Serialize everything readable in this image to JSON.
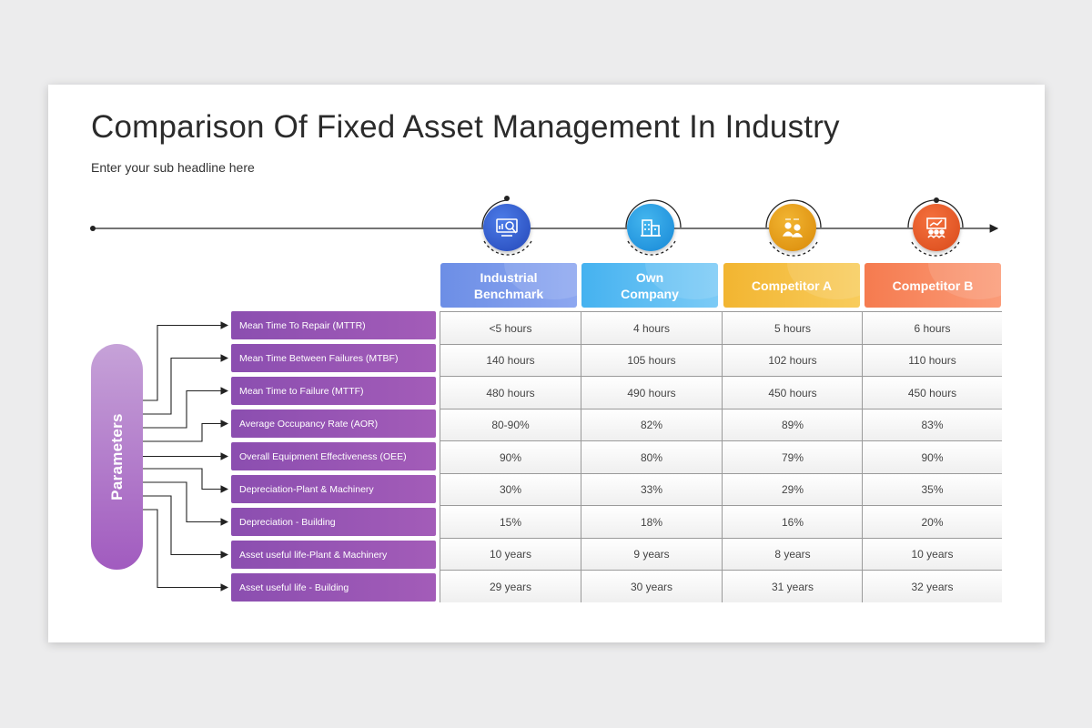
{
  "title": "Comparison Of Fixed Asset Management In Industry",
  "subtitle": "Enter your sub headline here",
  "parameters_label": "Parameters",
  "columns": [
    {
      "label": "Industrial Benchmark",
      "color": "#6c8ee6",
      "icon": "analytics-search-icon"
    },
    {
      "label": "Own Company",
      "color": "#45b2f0",
      "icon": "buildings-icon"
    },
    {
      "label": "Competitor A",
      "color": "#f2b531",
      "icon": "team-meeting-icon"
    },
    {
      "label": "Competitor B",
      "color": "#f57b4f",
      "icon": "presentation-board-icon"
    }
  ],
  "rows": [
    {
      "label": "Mean Time To Repair (MTTR)",
      "values": [
        "<5 hours",
        "4 hours",
        "5 hours",
        "6 hours"
      ]
    },
    {
      "label": "Mean Time Between Failures (MTBF)",
      "values": [
        "140 hours",
        "105 hours",
        "102 hours",
        "110 hours"
      ]
    },
    {
      "label": "Mean Time to Failure (MTTF)",
      "values": [
        "480 hours",
        "490 hours",
        "450 hours",
        "450 hours"
      ]
    },
    {
      "label": "Average Occupancy Rate (AOR)",
      "values": [
        "80-90%",
        "82%",
        "89%",
        "83%"
      ]
    },
    {
      "label": "Overall Equipment Effectiveness (OEE)",
      "values": [
        "90%",
        "80%",
        "79%",
        "90%"
      ]
    },
    {
      "label": "Depreciation-Plant & Machinery",
      "values": [
        "30%",
        "33%",
        "29%",
        "35%"
      ]
    },
    {
      "label": "Depreciation - Building",
      "values": [
        "15%",
        "18%",
        "16%",
        "20%"
      ]
    },
    {
      "label": "Asset useful life-Plant & Machinery",
      "values": [
        "10 years",
        "9 years",
        "8 years",
        "10 years"
      ]
    },
    {
      "label": "Asset useful life - Building",
      "values": [
        "29 years",
        "30 years",
        "31 years",
        "32 years"
      ]
    }
  ],
  "colors": {
    "parameter_purple": "#9b57b8",
    "pill_purple": "#b47fcb",
    "connector": "#222222"
  }
}
